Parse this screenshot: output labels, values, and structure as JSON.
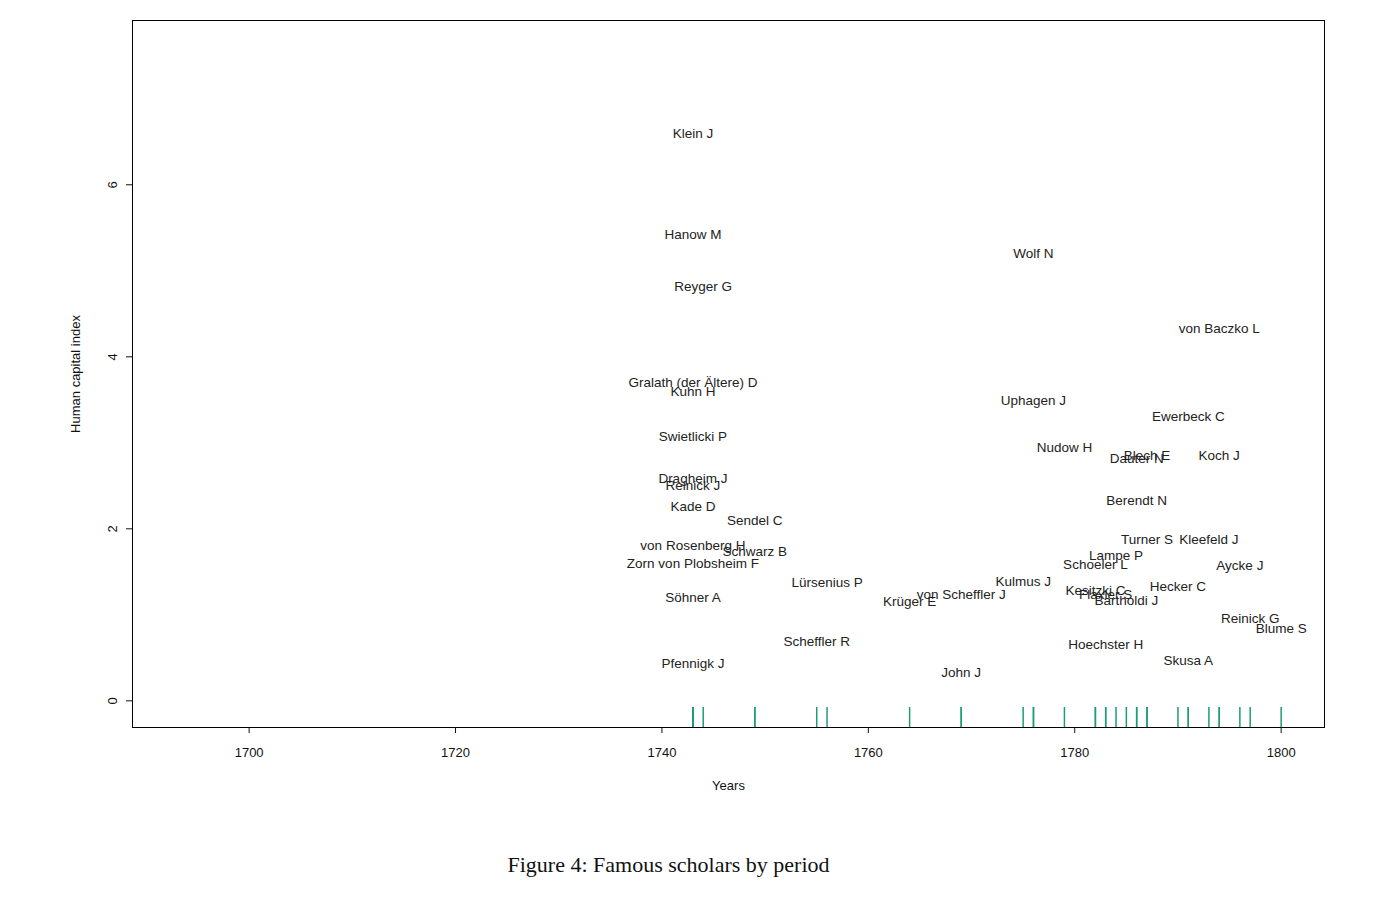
{
  "chart_data": {
    "type": "text_scatter",
    "caption": "Figure 4: Famous scholars by period",
    "x_label": "Years",
    "y_label": "Human capital index",
    "xlim": [
      1688.7,
      1804.2
    ],
    "ylim": [
      -0.31,
      7.91
    ],
    "xticks": [
      1700,
      1720,
      1740,
      1760,
      1780,
      1800
    ],
    "yticks": [
      0,
      2,
      4,
      6
    ],
    "grid": false,
    "color": "#1b9e77",
    "points": [
      {
        "label": "Klein J",
        "x": 1743,
        "y": 6.59
      },
      {
        "label": "Hanow M",
        "x": 1743,
        "y": 5.42
      },
      {
        "label": "Reyger G",
        "x": 1744,
        "y": 4.81
      },
      {
        "label": "Gralath (der Ältere) D",
        "x": 1743,
        "y": 3.7
      },
      {
        "label": "Kuhn H",
        "x": 1743,
        "y": 3.59
      },
      {
        "label": "Swietlicki P",
        "x": 1743,
        "y": 3.07
      },
      {
        "label": "Dragheim J",
        "x": 1743,
        "y": 2.58
      },
      {
        "label": "Reinick J",
        "x": 1743,
        "y": 2.5
      },
      {
        "label": "Kade D",
        "x": 1743,
        "y": 2.26
      },
      {
        "label": "Sendel C",
        "x": 1749,
        "y": 2.09
      },
      {
        "label": "von Rosenberg H",
        "x": 1743,
        "y": 1.8
      },
      {
        "label": "Schwarz B",
        "x": 1749,
        "y": 1.73
      },
      {
        "label": "Zorn von Plobsheim F",
        "x": 1743,
        "y": 1.59
      },
      {
        "label": "Söhner A",
        "x": 1743,
        "y": 1.2
      },
      {
        "label": "Pfennigk J",
        "x": 1743,
        "y": 0.43
      },
      {
        "label": "Lürsenius P",
        "x": 1756,
        "y": 1.37
      },
      {
        "label": "Scheffler R",
        "x": 1755,
        "y": 0.69
      },
      {
        "label": "Krüger E",
        "x": 1764,
        "y": 1.15
      },
      {
        "label": "von Scheffler J",
        "x": 1769,
        "y": 1.23
      },
      {
        "label": "John J",
        "x": 1769,
        "y": 0.33
      },
      {
        "label": "Kulmus J",
        "x": 1775,
        "y": 1.38
      },
      {
        "label": "Wolf N",
        "x": 1776,
        "y": 5.2
      },
      {
        "label": "Uphagen J",
        "x": 1776,
        "y": 3.49
      },
      {
        "label": "Nudow H",
        "x": 1779,
        "y": 2.94
      },
      {
        "label": "Schoeler L",
        "x": 1782,
        "y": 1.58
      },
      {
        "label": "Lampe P",
        "x": 1784,
        "y": 1.69
      },
      {
        "label": "Kesitzki C",
        "x": 1782,
        "y": 1.28
      },
      {
        "label": "Flaxler S",
        "x": 1783,
        "y": 1.23
      },
      {
        "label": "Bartholdi J",
        "x": 1785,
        "y": 1.17
      },
      {
        "label": "Hoechster H",
        "x": 1783,
        "y": 0.65
      },
      {
        "label": "Blech E",
        "x": 1787,
        "y": 2.85
      },
      {
        "label": "Dauter N",
        "x": 1786,
        "y": 2.81
      },
      {
        "label": "Berendt N",
        "x": 1786,
        "y": 2.33
      },
      {
        "label": "Ewerbeck C",
        "x": 1791,
        "y": 3.3
      },
      {
        "label": "Turner S",
        "x": 1787,
        "y": 1.87
      },
      {
        "label": "Kleefeld J",
        "x": 1793,
        "y": 1.87
      },
      {
        "label": "Hecker C",
        "x": 1790,
        "y": 1.33
      },
      {
        "label": "Skusa A",
        "x": 1791,
        "y": 0.47
      },
      {
        "label": "von Baczko L",
        "x": 1794,
        "y": 4.33
      },
      {
        "label": "Koch J",
        "x": 1794,
        "y": 2.85
      },
      {
        "label": "Aycke J",
        "x": 1796,
        "y": 1.57
      },
      {
        "label": "Reinick G",
        "x": 1797,
        "y": 0.95
      },
      {
        "label": "Blume S",
        "x": 1800,
        "y": 0.84
      }
    ]
  }
}
